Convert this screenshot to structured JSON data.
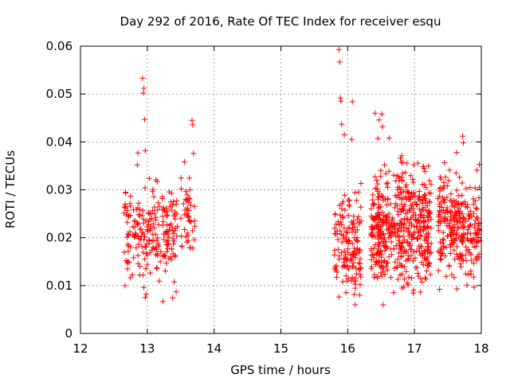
{
  "chart_data": {
    "type": "scatter",
    "title": "Day 292 of 2016, Rate Of TEC Index for receiver esqu",
    "xlabel": "GPS time / hours",
    "ylabel": "ROTI / TECUs",
    "xlim": [
      12,
      18
    ],
    "ylim": [
      0,
      0.06
    ],
    "xticks": [
      12,
      13,
      14,
      15,
      16,
      17,
      18
    ],
    "xtick_labels": [
      "12",
      "13",
      "14",
      "15",
      "16",
      "17",
      "18"
    ],
    "yticks": [
      0,
      0.01,
      0.02,
      0.03,
      0.04,
      0.05,
      0.06
    ],
    "ytick_labels": [
      "0",
      "0.01",
      "0.02",
      "0.03",
      "0.04",
      "0.05",
      "0.06"
    ],
    "grid": true,
    "marker": "+",
    "marker_color": "#ff0000",
    "clusters": [
      {
        "x_range": [
          12.65,
          13.45
        ],
        "y_center": 0.021,
        "y_spread": 0.0045,
        "count": 220
      },
      {
        "x_range": [
          13.5,
          13.72
        ],
        "y_center": 0.024,
        "y_spread": 0.004,
        "count": 45
      },
      {
        "x_range": [
          15.8,
          16.2
        ],
        "y_center": 0.019,
        "y_spread": 0.005,
        "count": 150
      },
      {
        "x_range": [
          16.35,
          17.25
        ],
        "y_center": 0.022,
        "y_spread": 0.006,
        "count": 520
      },
      {
        "x_range": [
          17.35,
          17.98
        ],
        "y_center": 0.022,
        "y_spread": 0.005,
        "count": 280
      }
    ],
    "outliers": [
      {
        "x": 12.93,
        "y": 0.0533
      },
      {
        "x": 12.95,
        "y": 0.0512
      },
      {
        "x": 12.94,
        "y": 0.0502
      },
      {
        "x": 12.96,
        "y": 0.0447
      },
      {
        "x": 12.97,
        "y": 0.0382
      },
      {
        "x": 12.86,
        "y": 0.0377
      },
      {
        "x": 12.85,
        "y": 0.0352
      },
      {
        "x": 12.97,
        "y": 0.0075
      },
      {
        "x": 12.98,
        "y": 0.0082
      },
      {
        "x": 13.67,
        "y": 0.0445
      },
      {
        "x": 13.68,
        "y": 0.0436
      },
      {
        "x": 13.69,
        "y": 0.0376
      },
      {
        "x": 15.87,
        "y": 0.0593
      },
      {
        "x": 15.88,
        "y": 0.0567
      },
      {
        "x": 15.89,
        "y": 0.0492
      },
      {
        "x": 15.9,
        "y": 0.0485
      },
      {
        "x": 16.07,
        "y": 0.0484
      },
      {
        "x": 15.91,
        "y": 0.0437
      },
      {
        "x": 15.95,
        "y": 0.0415
      },
      {
        "x": 16.06,
        "y": 0.0405
      },
      {
        "x": 16.41,
        "y": 0.046
      },
      {
        "x": 16.51,
        "y": 0.0458
      },
      {
        "x": 16.47,
        "y": 0.0446
      },
      {
        "x": 16.52,
        "y": 0.0432
      },
      {
        "x": 16.62,
        "y": 0.0408
      },
      {
        "x": 16.45,
        "y": 0.0407
      },
      {
        "x": 16.53,
        "y": 0.006
      },
      {
        "x": 17.72,
        "y": 0.0412
      },
      {
        "x": 17.73,
        "y": 0.0398
      },
      {
        "x": 17.63,
        "y": 0.0378
      }
    ]
  }
}
